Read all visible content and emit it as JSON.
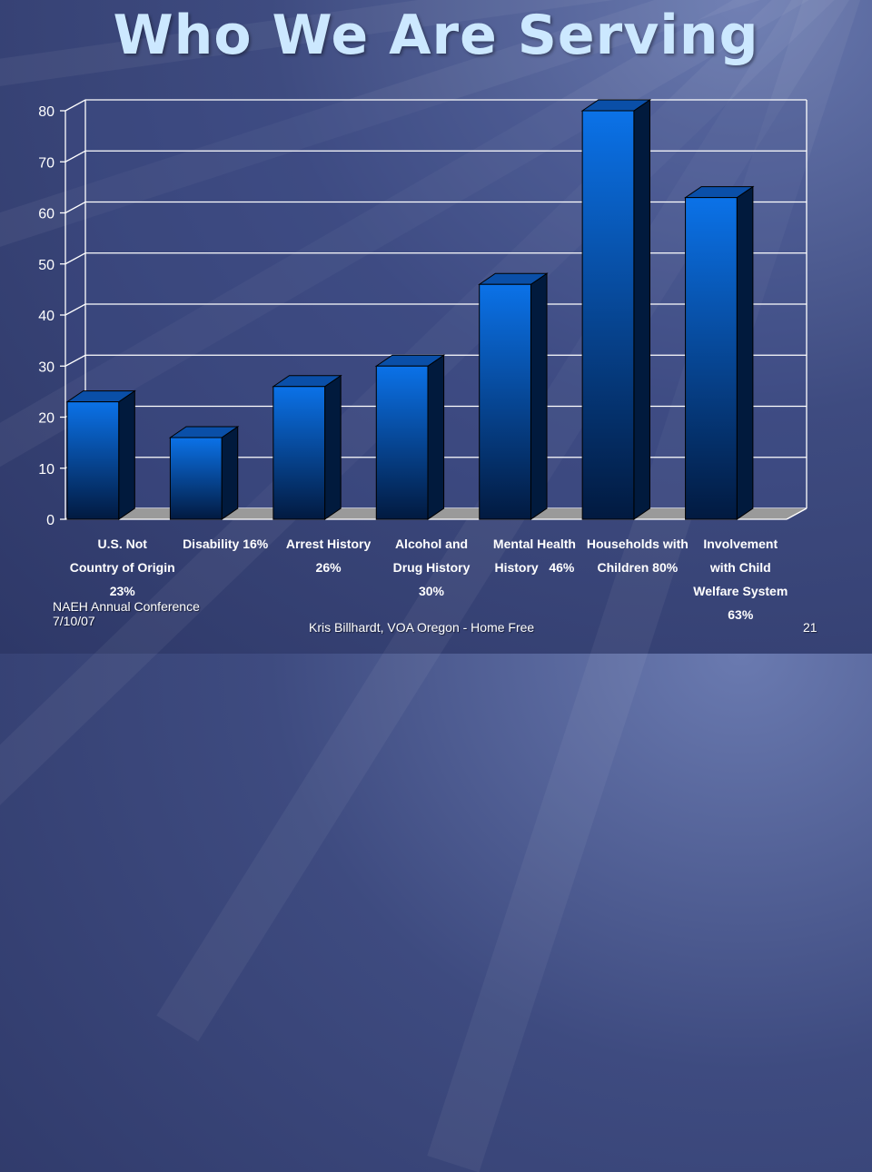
{
  "slide": {
    "title": "Who We Are Serving",
    "footer_left_line1": "NAEH Annual Conference",
    "footer_left_line2": "7/10/07",
    "footer_center": "Kris Billhardt, VOA Oregon - Home Free",
    "page_number": "21"
  },
  "chart_data": {
    "type": "bar",
    "title": "",
    "xlabel": "",
    "ylabel": "",
    "ylim": [
      0,
      80
    ],
    "yticks": [
      0,
      10,
      20,
      30,
      40,
      50,
      60,
      70,
      80
    ],
    "grid": true,
    "legend": "none",
    "categories": [
      [
        "U.S. Not",
        "Country of Origin",
        "23%"
      ],
      [
        "Disability 16%"
      ],
      [
        "Arrest History",
        "26%"
      ],
      [
        "Alcohol and",
        "Drug History",
        "30%"
      ],
      [
        "Mental Health",
        "History   46%"
      ],
      [
        "Households with",
        "Children 80%"
      ],
      [
        "Involvement",
        "with Child",
        "Welfare System",
        "63%"
      ]
    ],
    "values": [
      23,
      16,
      26,
      30,
      46,
      80,
      63
    ],
    "colors": {
      "bar_top": "#0a6fe0",
      "bar_bottom": "#021e4a",
      "bar_side": "#011a3d",
      "floor": "#9a9a9a",
      "plot_bg": "#3e4d8a",
      "grid": "#ffffff"
    }
  }
}
